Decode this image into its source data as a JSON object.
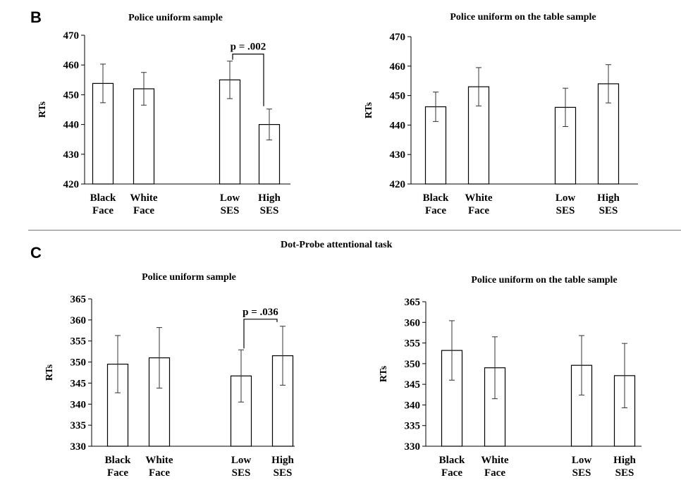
{
  "panels": {
    "B": {
      "letter": "B"
    },
    "C": {
      "letter": "C",
      "title": "Dot-Probe attentional task"
    }
  },
  "chart_data": [
    {
      "type": "bar",
      "title": "Police uniform sample",
      "ylabel": "RTs",
      "ylim": [
        420,
        470
      ],
      "yticks": [
        420,
        430,
        440,
        450,
        460,
        470
      ],
      "categories": [
        [
          "Black",
          "Face"
        ],
        [
          "White",
          "Face"
        ],
        [
          "Low",
          "SES"
        ],
        [
          "High",
          "SES"
        ]
      ],
      "values": [
        453.8,
        452.0,
        455.0,
        440.0
      ],
      "errors": [
        6.5,
        5.5,
        6.3,
        5.2
      ],
      "annotation": {
        "text": "p = .002",
        "between": [
          2,
          3
        ]
      }
    },
    {
      "type": "bar",
      "title": "Police uniform on the table sample",
      "ylabel": "RTs",
      "ylim": [
        420,
        470
      ],
      "yticks": [
        420,
        430,
        440,
        450,
        460,
        470
      ],
      "categories": [
        [
          "Black",
          "Face"
        ],
        [
          "White",
          "Face"
        ],
        [
          "Low",
          "SES"
        ],
        [
          "High",
          "SES"
        ]
      ],
      "values": [
        446.2,
        453.0,
        446.0,
        454.0
      ],
      "errors": [
        5.0,
        6.5,
        6.5,
        6.5
      ]
    },
    {
      "type": "bar",
      "title": "Police uniform sample",
      "ylabel": "RTs",
      "ylim": [
        330,
        365
      ],
      "yticks": [
        330,
        335,
        340,
        345,
        350,
        355,
        360,
        365
      ],
      "categories": [
        [
          "Black",
          "Face"
        ],
        [
          "White",
          "Face"
        ],
        [
          "Low",
          "SES"
        ],
        [
          "High",
          "SES"
        ]
      ],
      "values": [
        349.5,
        351.0,
        346.7,
        351.5
      ],
      "errors": [
        6.8,
        7.2,
        6.2,
        7.0
      ],
      "annotation": {
        "text": "p = .036",
        "between": [
          2,
          3
        ]
      }
    },
    {
      "type": "bar",
      "title": "Police uniform on the table sample",
      "ylabel": "RTs",
      "ylim": [
        330,
        365
      ],
      "yticks": [
        330,
        335,
        340,
        345,
        350,
        355,
        360,
        365
      ],
      "categories": [
        [
          "Black",
          "Face"
        ],
        [
          "White",
          "Face"
        ],
        [
          "Low",
          "SES"
        ],
        [
          "High",
          "SES"
        ]
      ],
      "values": [
        353.2,
        349.0,
        349.6,
        347.1
      ],
      "errors": [
        7.2,
        7.5,
        7.2,
        7.8
      ]
    }
  ]
}
